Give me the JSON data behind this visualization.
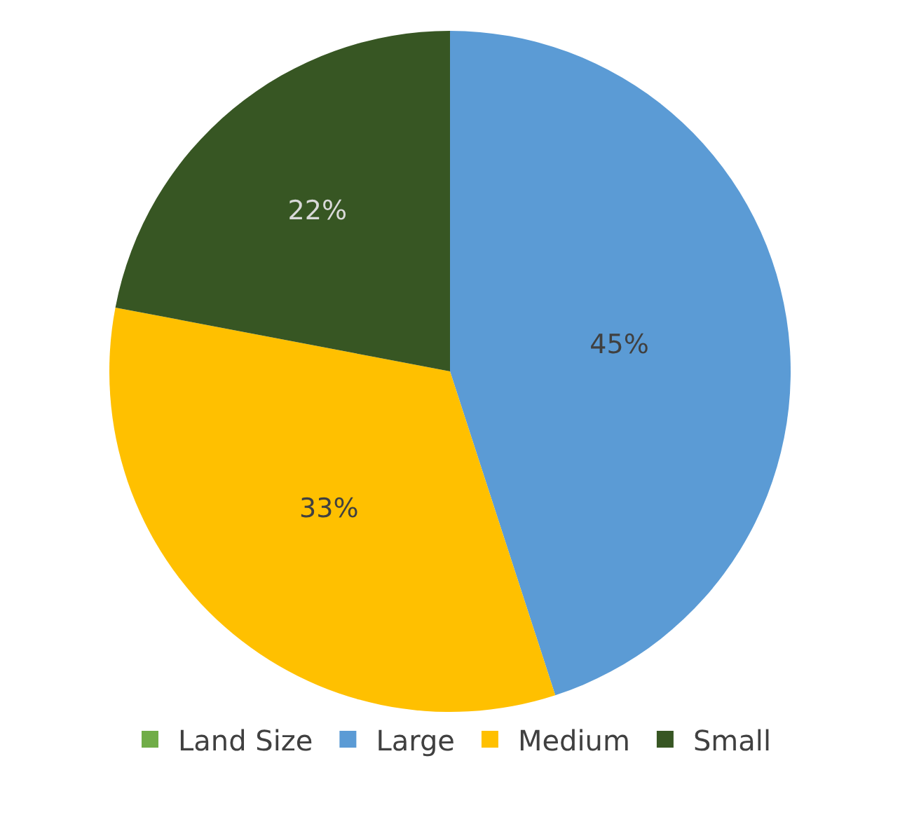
{
  "chart_data": {
    "type": "pie",
    "categories": [
      "Land Size",
      "Large",
      "Medium",
      "Small"
    ],
    "values": [
      0,
      45,
      33,
      22
    ],
    "colors": [
      "#70ad47",
      "#5b9bd5",
      "#ffc000",
      "#375623"
    ],
    "value_labels": [
      null,
      "45%",
      "33%",
      "22%"
    ],
    "legend": "bottom"
  }
}
